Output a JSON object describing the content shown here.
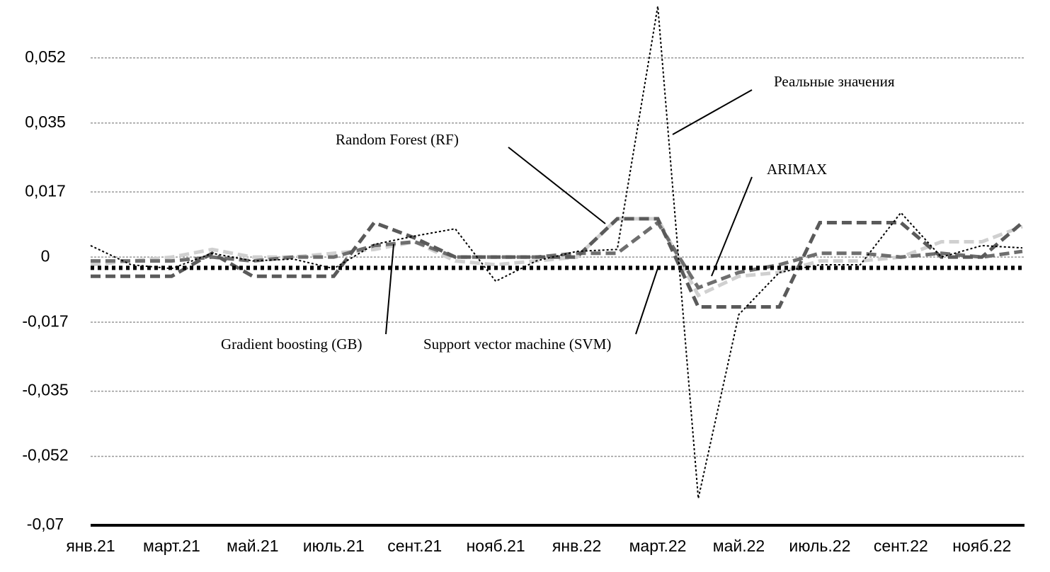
{
  "chart_data": {
    "type": "line",
    "categories": [
      "янв.21",
      null,
      "март.21",
      null,
      "май.21",
      null,
      "июль.21",
      null,
      "сент.21",
      null,
      "нояб.21",
      null,
      "янв.22",
      null,
      "март.22",
      null,
      "май.22",
      null,
      "июль.22",
      null,
      "сент.22",
      null,
      "нояб.22",
      null
    ],
    "series": [
      {
        "name": "Реальные значения",
        "color": "#000000",
        "style": "fine-dotted",
        "values": [
          0.003,
          -0.002,
          -0.003,
          0.001,
          -0.001,
          -0.0005,
          -0.003,
          0.0033,
          0.0055,
          0.0074,
          -0.0063,
          -0.001,
          0.0015,
          0.002,
          0.0655,
          -0.063,
          -0.015,
          -0.004,
          -0.002,
          -0.002,
          0.0116,
          0,
          0.003,
          0.0024
        ]
      },
      {
        "name": "Gradient boosting (GB)",
        "color": "#5a5a5a",
        "style": "dashed",
        "values": [
          -0.005,
          -0.005,
          -0.005,
          0.001,
          -0.005,
          -0.005,
          -0.005,
          0.009,
          0.005,
          0,
          0,
          0,
          0,
          0.01,
          0.01,
          -0.013,
          -0.013,
          -0.013,
          0.009,
          0.009,
          0.009,
          0,
          0,
          0.009
        ]
      },
      {
        "name": "ARIMAX",
        "color": "#6e6e6e",
        "style": "dashed",
        "values": [
          -0.001,
          -0.001,
          -0.001,
          0,
          -0.001,
          0,
          0,
          0.003,
          0.004,
          0,
          0,
          0,
          0.001,
          0.001,
          0.009,
          -0.008,
          -0.004,
          -0.002,
          0.001,
          0.001,
          0,
          0.001,
          0,
          0.0015
        ]
      },
      {
        "name": "Random Forest (RF)",
        "color": "#d0d0d0",
        "style": "dashed",
        "values": [
          -0.002,
          -0.001,
          0,
          0.002,
          0,
          0,
          0.001,
          0.002,
          0.004,
          -0.001,
          -0.002,
          -0.001,
          0,
          0.01,
          0.01,
          -0.01,
          -0.005,
          -0.004,
          -0.001,
          -0.001,
          0,
          0.004,
          0.004,
          0.008
        ]
      },
      {
        "name": "Support vector machine (SVM)",
        "color": "#000000",
        "style": "heavy-dotted",
        "values": [
          -0.0028,
          -0.0028,
          -0.0028,
          -0.0028,
          -0.0028,
          -0.0028,
          -0.0028,
          -0.0028,
          -0.0028,
          -0.0028,
          -0.0028,
          -0.0028,
          -0.0028,
          -0.0028,
          -0.0028,
          -0.0028,
          -0.0028,
          -0.0028,
          -0.0028,
          -0.0028,
          -0.0028,
          -0.0028,
          -0.0028,
          -0.0028
        ]
      }
    ],
    "ylim": [
      -0.07,
      0.066
    ],
    "yticks": [
      {
        "value": 0.052,
        "label": "0,052"
      },
      {
        "value": 0.035,
        "label": "0,035"
      },
      {
        "value": 0.017,
        "label": "0,017"
      },
      0,
      {
        "value": -0.017,
        "label": "-0,017"
      },
      {
        "value": -0.035,
        "label": "-0,035"
      },
      {
        "value": -0.052,
        "label": "-0,052"
      },
      {
        "value": -0.07,
        "label": "-0,07"
      }
    ],
    "grid": true
  }
}
